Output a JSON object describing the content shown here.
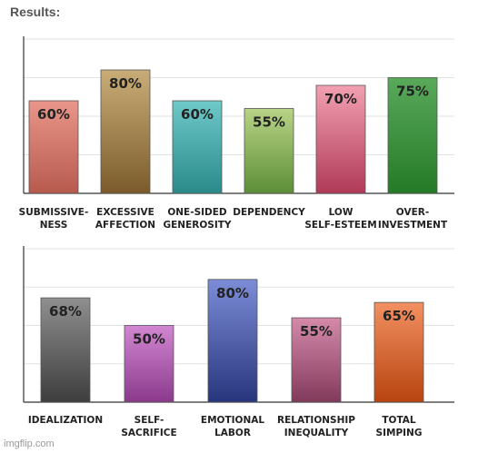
{
  "header": {
    "title": "Results:"
  },
  "watermark": "imgflip.com",
  "chart_data": [
    {
      "type": "bar",
      "categories": [
        [
          "SUBMISSIVE-",
          "NESS"
        ],
        [
          "EXCESSIVE",
          "AFFECTION"
        ],
        [
          "ONE-SIDED",
          "GENEROSITY"
        ],
        [
          "DEPENDENCY"
        ],
        [
          "LOW",
          "SELF-ESTEEM"
        ],
        [
          "OVER-",
          "INVESTMENT"
        ]
      ],
      "values": [
        60,
        80,
        60,
        55,
        70,
        75
      ],
      "value_labels": [
        "60%",
        "80%",
        "60%",
        "55%",
        "70%",
        "75%"
      ],
      "colors": [
        [
          "#e9968a",
          "#b75a4e"
        ],
        [
          "#c9ad78",
          "#7b5b2b"
        ],
        [
          "#6ec9c9",
          "#2a8a8a"
        ],
        [
          "#b8d486",
          "#5d8e37"
        ],
        [
          "#f2a0b2",
          "#b03a58"
        ],
        [
          "#59a95b",
          "#247a26"
        ]
      ],
      "ylim": [
        0,
        100
      ],
      "grid": true
    },
    {
      "type": "bar",
      "categories": [
        [
          "IDEALIZATION"
        ],
        [
          "SELF-",
          "SACRIFICE"
        ],
        [
          "EMOTIONAL",
          "LABOR"
        ],
        [
          "RELATIONSHIP",
          "INEQUALITY"
        ],
        [
          "TOTAL",
          "SIMPING"
        ]
      ],
      "values": [
        68,
        50,
        80,
        55,
        65
      ],
      "value_labels": [
        "68%",
        "50%",
        "80%",
        "55%",
        "65%"
      ],
      "colors": [
        [
          "#8f8f8f",
          "#3d3d3d"
        ],
        [
          "#d287d2",
          "#8b3a8b"
        ],
        [
          "#7c8cd6",
          "#27357d"
        ],
        [
          "#d58aaa",
          "#823a5b"
        ],
        [
          "#f39062",
          "#b7440f"
        ]
      ],
      "ylim": [
        0,
        100
      ],
      "grid": true
    }
  ]
}
